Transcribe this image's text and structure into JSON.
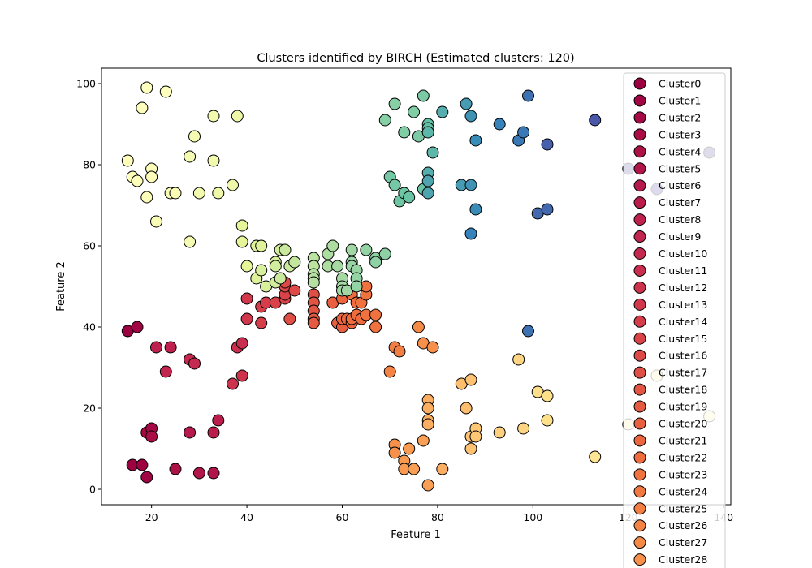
{
  "chart_data": {
    "type": "scatter",
    "title": "Clusters identified by BIRCH (Estimated clusters: 120)",
    "xlabel": "Feature 1",
    "ylabel": "Feature 2",
    "xlim": [
      9.5,
      141.5
    ],
    "ylim": [
      -3.8,
      103.8
    ],
    "xticks": [
      20,
      40,
      60,
      80,
      100,
      120,
      140
    ],
    "yticks": [
      0,
      20,
      40,
      60,
      80,
      100
    ],
    "grid": false,
    "legend_position": "top-right",
    "colormap": "Spectral",
    "legend": [
      {
        "name": "Cluster0",
        "color": "#9e0142"
      },
      {
        "name": "Cluster1",
        "color": "#a20543"
      },
      {
        "name": "Cluster2",
        "color": "#a60945"
      },
      {
        "name": "Cluster3",
        "color": "#aa0d46"
      },
      {
        "name": "Cluster4",
        "color": "#ae1148"
      },
      {
        "name": "Cluster5",
        "color": "#b21549"
      },
      {
        "name": "Cluster6",
        "color": "#b6194b"
      },
      {
        "name": "Cluster7",
        "color": "#ba1d4c"
      },
      {
        "name": "Cluster8",
        "color": "#be214d"
      },
      {
        "name": "Cluster9",
        "color": "#c2254e"
      },
      {
        "name": "Cluster10",
        "color": "#c6294f"
      },
      {
        "name": "Cluster11",
        "color": "#ca2e4e"
      },
      {
        "name": "Cluster12",
        "color": "#ce334d"
      },
      {
        "name": "Cluster13",
        "color": "#d2384c"
      },
      {
        "name": "Cluster14",
        "color": "#d63d4a"
      },
      {
        "name": "Cluster15",
        "color": "#d94348"
      },
      {
        "name": "Cluster16",
        "color": "#dc4946"
      },
      {
        "name": "Cluster17",
        "color": "#df4f45"
      },
      {
        "name": "Cluster18",
        "color": "#e25543"
      },
      {
        "name": "Cluster19",
        "color": "#e55a42"
      },
      {
        "name": "Cluster20",
        "color": "#e86040"
      },
      {
        "name": "Cluster21",
        "color": "#eb663f"
      },
      {
        "name": "Cluster22",
        "color": "#ee6c3e"
      },
      {
        "name": "Cluster23",
        "color": "#f0723f"
      },
      {
        "name": "Cluster24",
        "color": "#f27841"
      },
      {
        "name": "Cluster25",
        "color": "#f37e43"
      },
      {
        "name": "Cluster26",
        "color": "#f48445"
      },
      {
        "name": "Cluster27",
        "color": "#f58a47"
      },
      {
        "name": "Cluster28",
        "color": "#f6904a"
      }
    ],
    "points": [
      {
        "x": 16,
        "y": 6,
        "c": "#9e0142"
      },
      {
        "x": 18,
        "y": 6,
        "c": "#9e0142"
      },
      {
        "x": 19,
        "y": 3,
        "c": "#a20543"
      },
      {
        "x": 19,
        "y": 14,
        "c": "#a60945"
      },
      {
        "x": 20,
        "y": 15,
        "c": "#a60945"
      },
      {
        "x": 20,
        "y": 13,
        "c": "#aa0d46"
      },
      {
        "x": 25,
        "y": 5,
        "c": "#ae1148"
      },
      {
        "x": 30,
        "y": 4,
        "c": "#b21549"
      },
      {
        "x": 33,
        "y": 4,
        "c": "#b21549"
      },
      {
        "x": 28,
        "y": 14,
        "c": "#b6194b"
      },
      {
        "x": 33,
        "y": 14,
        "c": "#ba1d4c"
      },
      {
        "x": 34,
        "y": 17,
        "c": "#ba1d4c"
      },
      {
        "x": 15,
        "y": 39,
        "c": "#9e0142"
      },
      {
        "x": 17,
        "y": 40,
        "c": "#a20543"
      },
      {
        "x": 21,
        "y": 35,
        "c": "#be214d"
      },
      {
        "x": 24,
        "y": 35,
        "c": "#be214d"
      },
      {
        "x": 23,
        "y": 29,
        "c": "#c2254e"
      },
      {
        "x": 28,
        "y": 32,
        "c": "#c6294f"
      },
      {
        "x": 29,
        "y": 31,
        "c": "#c6294f"
      },
      {
        "x": 37,
        "y": 26,
        "c": "#ce334d"
      },
      {
        "x": 38,
        "y": 35,
        "c": "#ca2e4e"
      },
      {
        "x": 39,
        "y": 36,
        "c": "#ca2e4e"
      },
      {
        "x": 39,
        "y": 28,
        "c": "#ce334d"
      },
      {
        "x": 40,
        "y": 47,
        "c": "#d2384c"
      },
      {
        "x": 40,
        "y": 42,
        "c": "#d2384c"
      },
      {
        "x": 43,
        "y": 41,
        "c": "#d63d4a"
      },
      {
        "x": 43,
        "y": 45,
        "c": "#d63d4a"
      },
      {
        "x": 44,
        "y": 46,
        "c": "#d63d4a"
      },
      {
        "x": 46,
        "y": 46,
        "c": "#d94348"
      },
      {
        "x": 48,
        "y": 47,
        "c": "#d94348"
      },
      {
        "x": 48,
        "y": 48,
        "c": "#d94348"
      },
      {
        "x": 48,
        "y": 50,
        "c": "#dc4946"
      },
      {
        "x": 48,
        "y": 51,
        "c": "#dc4946"
      },
      {
        "x": 50,
        "y": 49,
        "c": "#dc4946"
      },
      {
        "x": 49,
        "y": 42,
        "c": "#df4f45"
      },
      {
        "x": 54,
        "y": 48,
        "c": "#df4f45"
      },
      {
        "x": 54,
        "y": 46,
        "c": "#e25543"
      },
      {
        "x": 54,
        "y": 44,
        "c": "#e25543"
      },
      {
        "x": 54,
        "y": 42,
        "c": "#e55a42"
      },
      {
        "x": 54,
        "y": 41,
        "c": "#e55a42"
      },
      {
        "x": 58,
        "y": 46,
        "c": "#e86040"
      },
      {
        "x": 59,
        "y": 41,
        "c": "#e86040"
      },
      {
        "x": 60,
        "y": 40,
        "c": "#e86040"
      },
      {
        "x": 60,
        "y": 42,
        "c": "#eb663f"
      },
      {
        "x": 61,
        "y": 42,
        "c": "#eb663f"
      },
      {
        "x": 62,
        "y": 41,
        "c": "#eb663f"
      },
      {
        "x": 62,
        "y": 42,
        "c": "#ee6c3e"
      },
      {
        "x": 63,
        "y": 43,
        "c": "#ee6c3e"
      },
      {
        "x": 64,
        "y": 42,
        "c": "#ee6c3e"
      },
      {
        "x": 65,
        "y": 43,
        "c": "#f0723f"
      },
      {
        "x": 67,
        "y": 43,
        "c": "#f0723f"
      },
      {
        "x": 67,
        "y": 40,
        "c": "#f0723f"
      },
      {
        "x": 60,
        "y": 47,
        "c": "#eb663f"
      },
      {
        "x": 62,
        "y": 48,
        "c": "#ee6c3e"
      },
      {
        "x": 63,
        "y": 46,
        "c": "#ee6c3e"
      },
      {
        "x": 64,
        "y": 46,
        "c": "#f0723f"
      },
      {
        "x": 65,
        "y": 48,
        "c": "#f0723f"
      },
      {
        "x": 65,
        "y": 50,
        "c": "#f0723f"
      },
      {
        "x": 70,
        "y": 29,
        "c": "#f48445"
      },
      {
        "x": 71,
        "y": 35,
        "c": "#f37e43"
      },
      {
        "x": 72,
        "y": 34,
        "c": "#f37e43"
      },
      {
        "x": 76,
        "y": 40,
        "c": "#f58a47"
      },
      {
        "x": 77,
        "y": 36,
        "c": "#f6904a"
      },
      {
        "x": 79,
        "y": 35,
        "c": "#f6904a"
      },
      {
        "x": 71,
        "y": 11,
        "c": "#f6904a"
      },
      {
        "x": 71,
        "y": 9,
        "c": "#f6904a"
      },
      {
        "x": 73,
        "y": 7,
        "c": "#f89b51"
      },
      {
        "x": 73,
        "y": 5,
        "c": "#f89b51"
      },
      {
        "x": 74,
        "y": 10,
        "c": "#f89b51"
      },
      {
        "x": 75,
        "y": 5,
        "c": "#f99f56"
      },
      {
        "x": 77,
        "y": 12,
        "c": "#f99f56"
      },
      {
        "x": 78,
        "y": 1,
        "c": "#f99f56"
      },
      {
        "x": 81,
        "y": 5,
        "c": "#fbad61"
      },
      {
        "x": 78,
        "y": 22,
        "c": "#fbad61"
      },
      {
        "x": 78,
        "y": 20,
        "c": "#fbad61"
      },
      {
        "x": 78,
        "y": 17,
        "c": "#fbad61"
      },
      {
        "x": 78,
        "y": 16,
        "c": "#fbad61"
      },
      {
        "x": 85,
        "y": 26,
        "c": "#fdbe6e"
      },
      {
        "x": 86,
        "y": 20,
        "c": "#fdbe6e"
      },
      {
        "x": 87,
        "y": 27,
        "c": "#fdc373"
      },
      {
        "x": 87,
        "y": 13,
        "c": "#fdc373"
      },
      {
        "x": 87,
        "y": 10,
        "c": "#fdc373"
      },
      {
        "x": 88,
        "y": 15,
        "c": "#fdc776"
      },
      {
        "x": 88,
        "y": 13,
        "c": "#fdc776"
      },
      {
        "x": 93,
        "y": 14,
        "c": "#fdcf7e"
      },
      {
        "x": 97,
        "y": 32,
        "c": "#fed683"
      },
      {
        "x": 98,
        "y": 15,
        "c": "#fed683"
      },
      {
        "x": 101,
        "y": 24,
        "c": "#fee08b"
      },
      {
        "x": 103,
        "y": 23,
        "c": "#fee08b"
      },
      {
        "x": 103,
        "y": 17,
        "c": "#fee08b"
      },
      {
        "x": 113,
        "y": 8,
        "c": "#fee593"
      },
      {
        "x": 120,
        "y": 16,
        "c": "#feed9f"
      },
      {
        "x": 126,
        "y": 28,
        "c": "#fef0a6"
      },
      {
        "x": 137,
        "y": 18,
        "c": "#fef6b1"
      },
      {
        "x": 19,
        "y": 99,
        "c": "#ffffbe"
      },
      {
        "x": 23,
        "y": 98,
        "c": "#ffffbe"
      },
      {
        "x": 18,
        "y": 94,
        "c": "#ffffbe"
      },
      {
        "x": 15,
        "y": 81,
        "c": "#fefebb"
      },
      {
        "x": 16,
        "y": 77,
        "c": "#fefebb"
      },
      {
        "x": 17,
        "y": 76,
        "c": "#fefebb"
      },
      {
        "x": 20,
        "y": 79,
        "c": "#fbfdb8"
      },
      {
        "x": 20,
        "y": 77,
        "c": "#fbfdb8"
      },
      {
        "x": 19,
        "y": 72,
        "c": "#fbfdb8"
      },
      {
        "x": 21,
        "y": 66,
        "c": "#f8fcb5"
      },
      {
        "x": 24,
        "y": 73,
        "c": "#f8fcb5"
      },
      {
        "x": 25,
        "y": 73,
        "c": "#f8fcb5"
      },
      {
        "x": 28,
        "y": 82,
        "c": "#f5fbb2"
      },
      {
        "x": 29,
        "y": 87,
        "c": "#f5fbb2"
      },
      {
        "x": 28,
        "y": 61,
        "c": "#f5fbb2"
      },
      {
        "x": 30,
        "y": 73,
        "c": "#f2faae"
      },
      {
        "x": 33,
        "y": 92,
        "c": "#f2faae"
      },
      {
        "x": 33,
        "y": 81,
        "c": "#f2faae"
      },
      {
        "x": 34,
        "y": 73,
        "c": "#eef8a8"
      },
      {
        "x": 37,
        "y": 75,
        "c": "#eef8a8"
      },
      {
        "x": 38,
        "y": 92,
        "c": "#eef8a8"
      },
      {
        "x": 39,
        "y": 65,
        "c": "#e6f598"
      },
      {
        "x": 39,
        "y": 61,
        "c": "#e6f598"
      },
      {
        "x": 40,
        "y": 55,
        "c": "#e6f598"
      },
      {
        "x": 42,
        "y": 60,
        "c": "#dff299"
      },
      {
        "x": 43,
        "y": 60,
        "c": "#dff299"
      },
      {
        "x": 42,
        "y": 52,
        "c": "#dff299"
      },
      {
        "x": 43,
        "y": 54,
        "c": "#d8ef9b"
      },
      {
        "x": 44,
        "y": 50,
        "c": "#d8ef9b"
      },
      {
        "x": 46,
        "y": 56,
        "c": "#d8ef9b"
      },
      {
        "x": 46,
        "y": 55,
        "c": "#d1ec9c"
      },
      {
        "x": 46,
        "y": 51,
        "c": "#d1ec9c"
      },
      {
        "x": 47,
        "y": 59,
        "c": "#d1ec9c"
      },
      {
        "x": 47,
        "y": 52,
        "c": "#cae99d"
      },
      {
        "x": 48,
        "y": 59,
        "c": "#cae99d"
      },
      {
        "x": 49,
        "y": 55,
        "c": "#cae99d"
      },
      {
        "x": 50,
        "y": 56,
        "c": "#c3e69e"
      },
      {
        "x": 54,
        "y": 57,
        "c": "#bde3a0"
      },
      {
        "x": 54,
        "y": 55,
        "c": "#bde3a0"
      },
      {
        "x": 54,
        "y": 53,
        "c": "#b6e0a1"
      },
      {
        "x": 54,
        "y": 52,
        "c": "#b6e0a1"
      },
      {
        "x": 54,
        "y": 51,
        "c": "#b6e0a1"
      },
      {
        "x": 57,
        "y": 58,
        "c": "#aedda2"
      },
      {
        "x": 57,
        "y": 55,
        "c": "#aedda2"
      },
      {
        "x": 58,
        "y": 60,
        "c": "#aedda2"
      },
      {
        "x": 59,
        "y": 55,
        "c": "#a7daa3"
      },
      {
        "x": 60,
        "y": 52,
        "c": "#a7daa3"
      },
      {
        "x": 60,
        "y": 50,
        "c": "#a7daa3"
      },
      {
        "x": 60,
        "y": 49,
        "c": "#a0d7a4"
      },
      {
        "x": 61,
        "y": 49,
        "c": "#a0d7a4"
      },
      {
        "x": 62,
        "y": 59,
        "c": "#a0d7a4"
      },
      {
        "x": 62,
        "y": 56,
        "c": "#99d5a4"
      },
      {
        "x": 62,
        "y": 55,
        "c": "#99d5a4"
      },
      {
        "x": 63,
        "y": 54,
        "c": "#99d5a4"
      },
      {
        "x": 63,
        "y": 52,
        "c": "#93d3a4"
      },
      {
        "x": 63,
        "y": 50,
        "c": "#93d3a4"
      },
      {
        "x": 65,
        "y": 59,
        "c": "#93d3a4"
      },
      {
        "x": 67,
        "y": 57,
        "c": "#8dd1a4"
      },
      {
        "x": 67,
        "y": 56,
        "c": "#8dd1a4"
      },
      {
        "x": 69,
        "y": 58,
        "c": "#8dd1a4"
      },
      {
        "x": 69,
        "y": 91,
        "c": "#87cfa4"
      },
      {
        "x": 71,
        "y": 95,
        "c": "#87cfa4"
      },
      {
        "x": 73,
        "y": 88,
        "c": "#81cda5"
      },
      {
        "x": 75,
        "y": 93,
        "c": "#81cda5"
      },
      {
        "x": 76,
        "y": 87,
        "c": "#7bcaa5"
      },
      {
        "x": 77,
        "y": 97,
        "c": "#7bcaa5"
      },
      {
        "x": 70,
        "y": 77,
        "c": "#75c8a5"
      },
      {
        "x": 71,
        "y": 75,
        "c": "#75c8a5"
      },
      {
        "x": 72,
        "y": 71,
        "c": "#6fc6a5"
      },
      {
        "x": 73,
        "y": 73,
        "c": "#6fc6a5"
      },
      {
        "x": 74,
        "y": 72,
        "c": "#69c3a5"
      },
      {
        "x": 77,
        "y": 74,
        "c": "#69c3a5"
      },
      {
        "x": 78,
        "y": 90,
        "c": "#63c0a6"
      },
      {
        "x": 78,
        "y": 89,
        "c": "#63c0a6"
      },
      {
        "x": 78,
        "y": 88,
        "c": "#5cb7a9"
      },
      {
        "x": 79,
        "y": 83,
        "c": "#5cb7a9"
      },
      {
        "x": 81,
        "y": 93,
        "c": "#55aead"
      },
      {
        "x": 78,
        "y": 78,
        "c": "#55aead"
      },
      {
        "x": 78,
        "y": 76,
        "c": "#4ea5b0"
      },
      {
        "x": 78,
        "y": 73,
        "c": "#4ea5b0"
      },
      {
        "x": 85,
        "y": 75,
        "c": "#479cb3"
      },
      {
        "x": 86,
        "y": 95,
        "c": "#479cb3"
      },
      {
        "x": 87,
        "y": 92,
        "c": "#4093b5"
      },
      {
        "x": 87,
        "y": 75,
        "c": "#4093b5"
      },
      {
        "x": 88,
        "y": 86,
        "c": "#398bb8"
      },
      {
        "x": 88,
        "y": 69,
        "c": "#398bb8"
      },
      {
        "x": 87,
        "y": 63,
        "c": "#3682ba"
      },
      {
        "x": 93,
        "y": 90,
        "c": "#3682ba"
      },
      {
        "x": 97,
        "y": 86,
        "c": "#3a79b6"
      },
      {
        "x": 98,
        "y": 88,
        "c": "#3a79b6"
      },
      {
        "x": 99,
        "y": 97,
        "c": "#3e71b2"
      },
      {
        "x": 99,
        "y": 39,
        "c": "#3e71b2"
      },
      {
        "x": 101,
        "y": 68,
        "c": "#4368ae"
      },
      {
        "x": 103,
        "y": 69,
        "c": "#4368ae"
      },
      {
        "x": 103,
        "y": 85,
        "c": "#4760ab"
      },
      {
        "x": 113,
        "y": 91,
        "c": "#4b57a7"
      },
      {
        "x": 120,
        "y": 79,
        "c": "#4f4fa3"
      },
      {
        "x": 126,
        "y": 74,
        "c": "#5346a0"
      },
      {
        "x": 137,
        "y": 83,
        "c": "#5e4fa2"
      }
    ]
  }
}
